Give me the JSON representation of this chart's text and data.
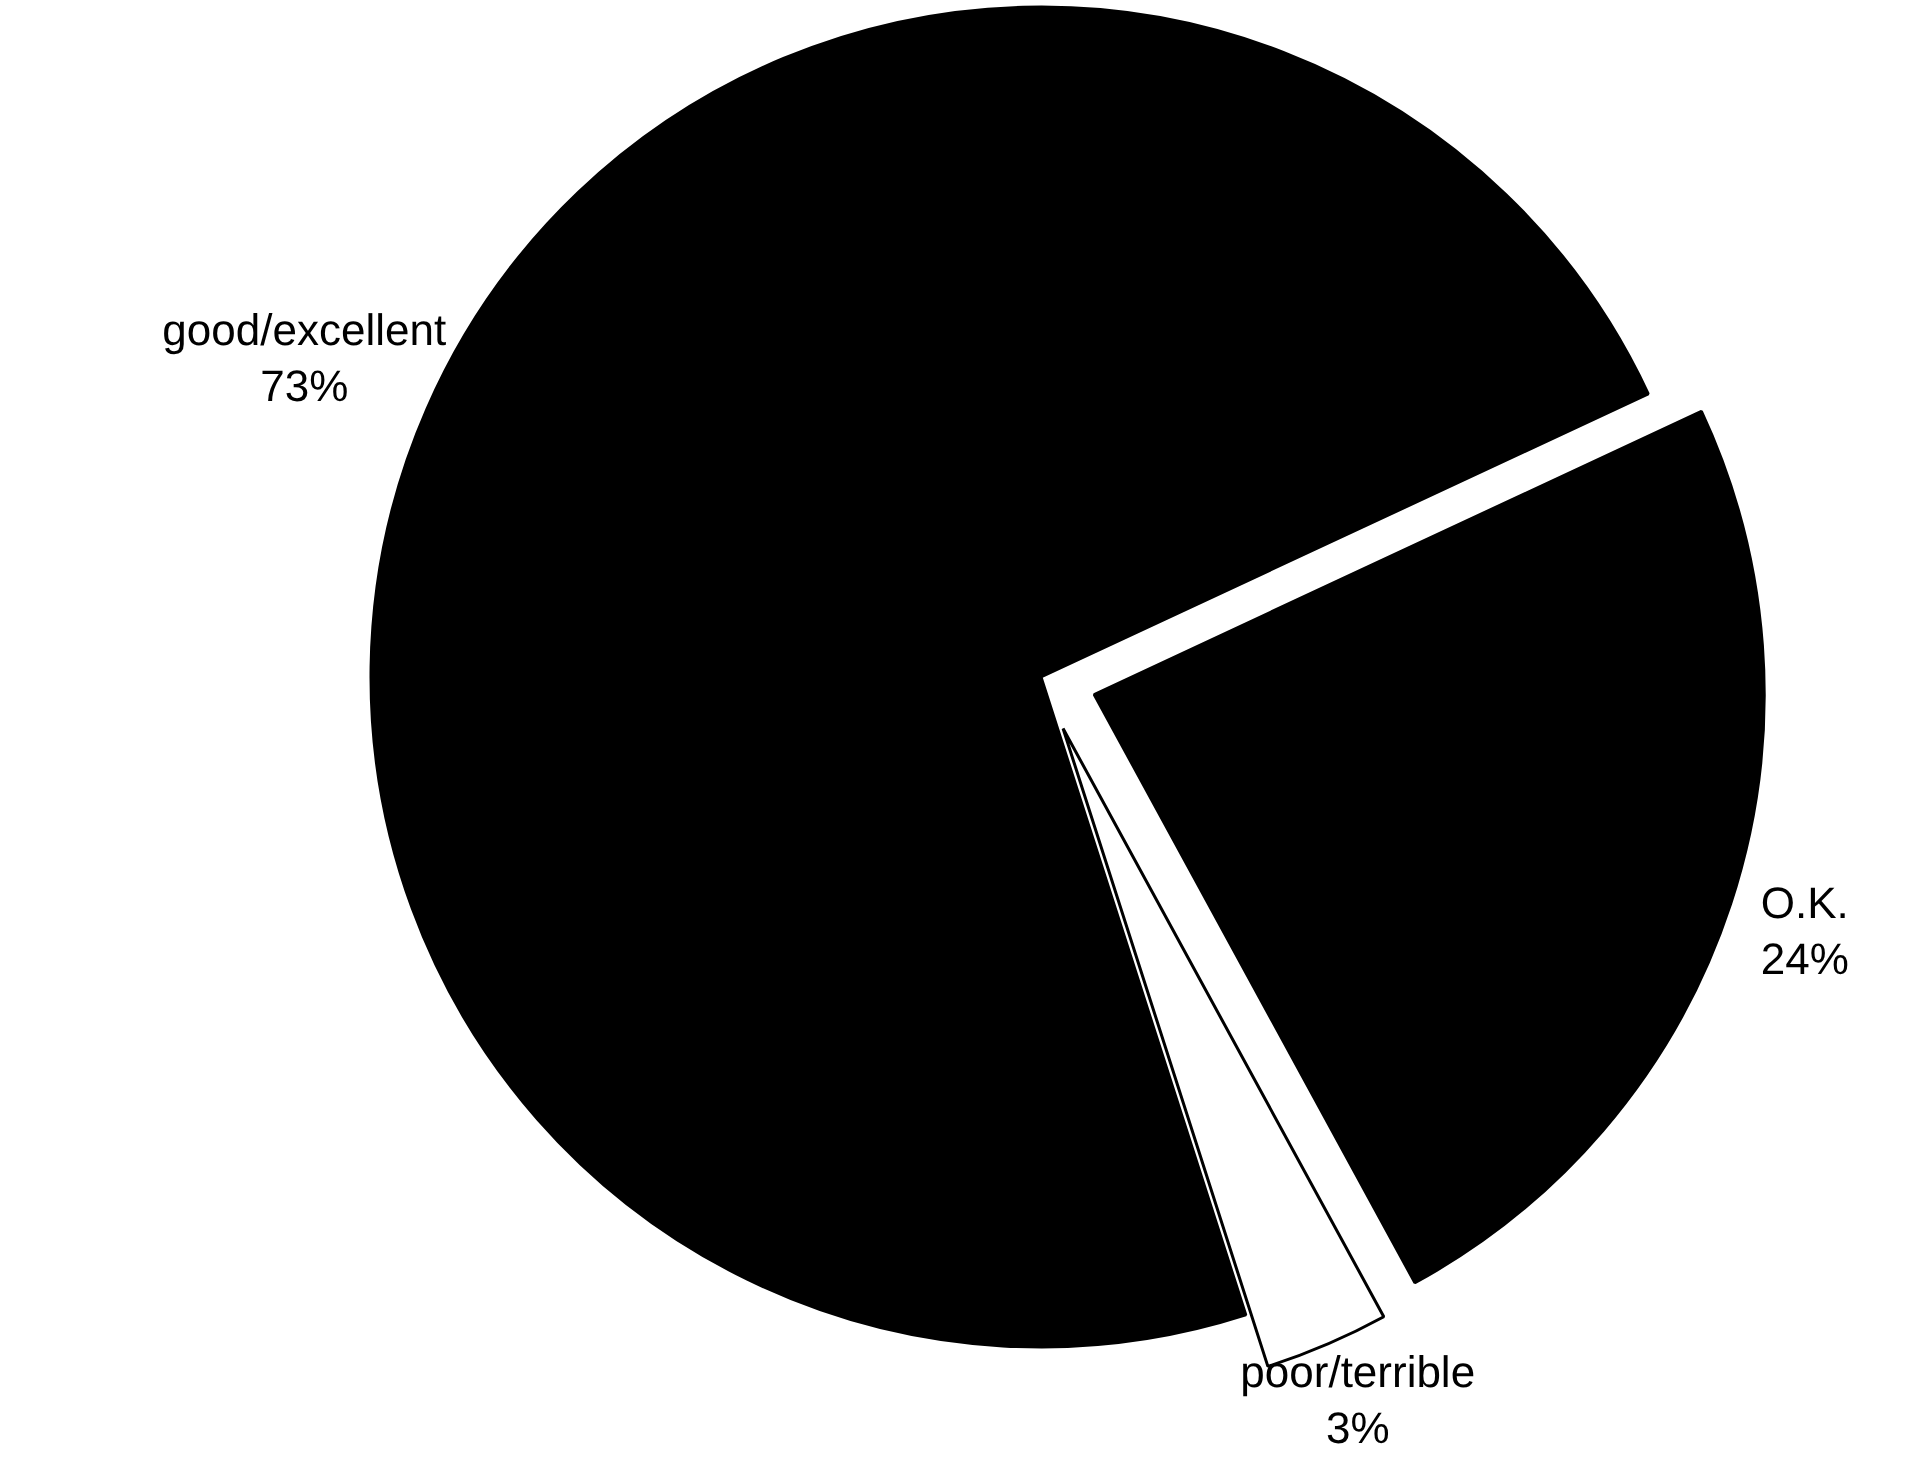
{
  "chart_data": {
    "type": "pie",
    "categories": [
      "good/excellent",
      "O.K.",
      "poor/terrible"
    ],
    "values": [
      73,
      24,
      3
    ],
    "colors": [
      "#000000",
      "#000000",
      "#ffffff"
    ],
    "value_labels": [
      "73%",
      "24%",
      "3%"
    ]
  }
}
